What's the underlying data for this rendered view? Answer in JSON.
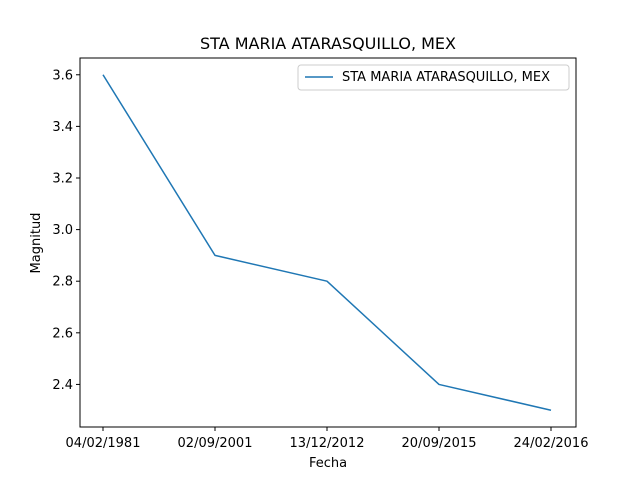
{
  "chart_data": {
    "type": "line",
    "title": "STA MARIA ATARASQUILLO, MEX",
    "xlabel": "Fecha",
    "ylabel": "Magnitud",
    "categories": [
      "04/02/1981",
      "02/09/2001",
      "13/12/2012",
      "20/09/2015",
      "24/02/2016"
    ],
    "series": [
      {
        "name": "STA MARIA ATARASQUILLO, MEX",
        "values": [
          3.6,
          2.9,
          2.8,
          2.4,
          2.3
        ],
        "color": "#1f77b4"
      }
    ],
    "ylim": [
      2.235,
      3.665
    ],
    "yticks": [
      2.4,
      2.6,
      2.8,
      3.0,
      3.2,
      3.4,
      3.6
    ],
    "ytick_labels": [
      "2.4",
      "2.6",
      "2.8",
      "3.0",
      "3.2",
      "3.4",
      "3.6"
    ],
    "grid": false,
    "legend_position": "upper right"
  }
}
